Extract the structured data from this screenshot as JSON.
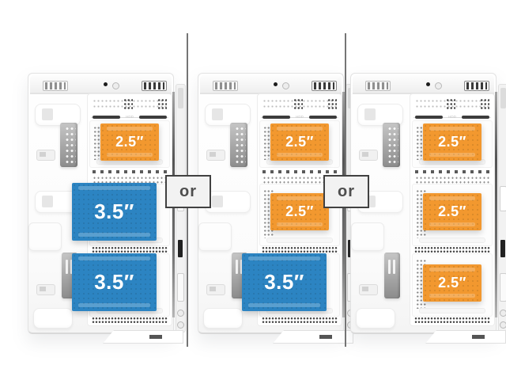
{
  "colors": {
    "bay_small": "#F2982F",
    "bay_large": "#2C84C2",
    "divider": "#757575",
    "badge_bg": "#F2F2F2",
    "badge_border": "#414141",
    "badge_text": "#4E4E4E"
  },
  "separators": [
    {
      "or_label": "or"
    },
    {
      "or_label": "or"
    }
  ],
  "cage": {
    "rail_label": "HDD"
  },
  "cases": [
    {
      "id": "configuration-1",
      "bays": [
        {
          "size": "2.5″",
          "type": "small"
        },
        {
          "size": "3.5″",
          "type": "large"
        },
        {
          "size": "3.5″",
          "type": "large"
        }
      ]
    },
    {
      "id": "configuration-2",
      "bays": [
        {
          "size": "2.5″",
          "type": "small"
        },
        {
          "size": "2.5″",
          "type": "small"
        },
        {
          "size": "3.5″",
          "type": "large"
        }
      ]
    },
    {
      "id": "configuration-3",
      "bays": [
        {
          "size": "2.5″",
          "type": "small"
        },
        {
          "size": "2.5″",
          "type": "small"
        },
        {
          "size": "2.5″",
          "type": "small"
        }
      ]
    }
  ]
}
